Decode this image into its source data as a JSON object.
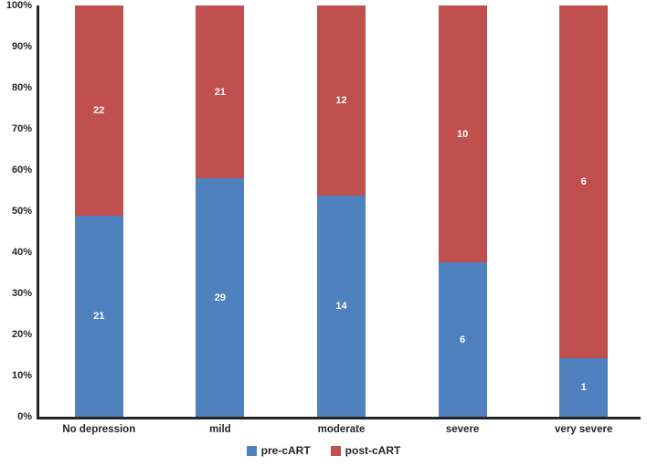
{
  "chart_data": {
    "type": "bar",
    "subtype": "100-percent-stacked-column",
    "categories": [
      "No depression",
      "mild",
      "moderate",
      "severe",
      "very severe"
    ],
    "series": [
      {
        "name": "pre-cART",
        "color": "#4e81bd",
        "values": [
          21,
          29,
          14,
          6,
          1
        ]
      },
      {
        "name": "post-cART",
        "color": "#c0504d",
        "values": [
          22,
          21,
          12,
          10,
          6
        ]
      }
    ],
    "y_ticks": [
      "0%",
      "10%",
      "20%",
      "30%",
      "40%",
      "50%",
      "60%",
      "70%",
      "80%",
      "90%",
      "100%"
    ],
    "ylim": [
      0,
      100
    ],
    "xlabel": "",
    "ylabel": "",
    "title": "",
    "grid": "off",
    "legend_position": "bottom",
    "value_label_color": "#ffffff"
  },
  "colors": {
    "background": "#ffffff",
    "axis": "#262626",
    "tick_text": "#262626"
  }
}
